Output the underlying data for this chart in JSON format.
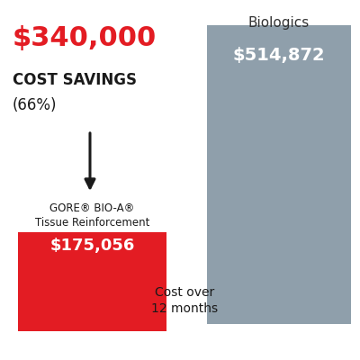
{
  "gore_value": 175056,
  "biologics_value": 514872,
  "savings_amount": "$340,000",
  "savings_pct": "(66%)",
  "savings_label": "COST SAVINGS",
  "gore_label_line1": "GORE® BIO-A®",
  "gore_label_line2": "Tissue Reinforcement",
  "gore_bar_text": "$175,056",
  "biologics_bar_text": "$514,872",
  "biologics_label": "Biologics",
  "x_label_line1": "Cost over",
  "x_label_line2": "12 months",
  "gore_color": "#e31c23",
  "biologics_color": "#8f9fab",
  "bar_text_color": "#ffffff",
  "savings_color": "#e31c23",
  "background_color": "#ffffff",
  "arrow_color": "#1a1a1a",
  "text_color": "#1a1a1a",
  "biologics_label_color": "#333333"
}
